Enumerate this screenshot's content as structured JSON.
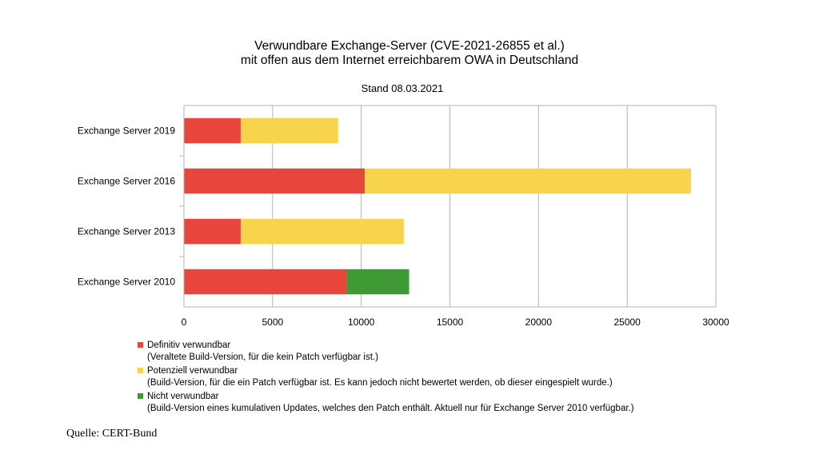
{
  "chart_data": {
    "type": "bar",
    "orientation": "horizontal",
    "stacked": true,
    "title_line1": "Verwundbare Exchange-Server (CVE-2021-26855 et al.)",
    "title_line2": "mit offen aus dem Internet erreichbarem OWA in Deutschland",
    "subtitle": "Stand 08.03.2021",
    "categories": [
      "Exchange Server 2019",
      "Exchange Server 2016",
      "Exchange Server 2013",
      "Exchange Server 2010"
    ],
    "series": [
      {
        "name": "Definitiv verwundbar",
        "description": "(Veraltete Build-Version, für die kein Patch verfügbar ist.)",
        "color": "#e8453c",
        "values": [
          3200,
          10200,
          3200,
          9200
        ]
      },
      {
        "name": "Potenziell verwundbar",
        "description": "(Build-Version, für die ein Patch verfügbar ist. Es kann jedoch nicht bewertet werden, ob dieser eingespielt wurde.)",
        "color": "#f8d44c",
        "values": [
          5500,
          18400,
          9200,
          0
        ]
      },
      {
        "name": "Nicht verwundbar",
        "description": "(Build-Version eines kumulativen Updates, welches den Patch enthält. Aktuell nur für Exchange Server 2010 verfügbar.)",
        "color": "#3f9a36",
        "values": [
          0,
          0,
          0,
          3500
        ]
      }
    ],
    "xlim": [
      0,
      30000
    ],
    "xticks": [
      0,
      5000,
      10000,
      15000,
      20000,
      25000,
      30000
    ],
    "grid": true,
    "legend_position": "bottom-left"
  },
  "source": "Quelle: CERT-Bund"
}
